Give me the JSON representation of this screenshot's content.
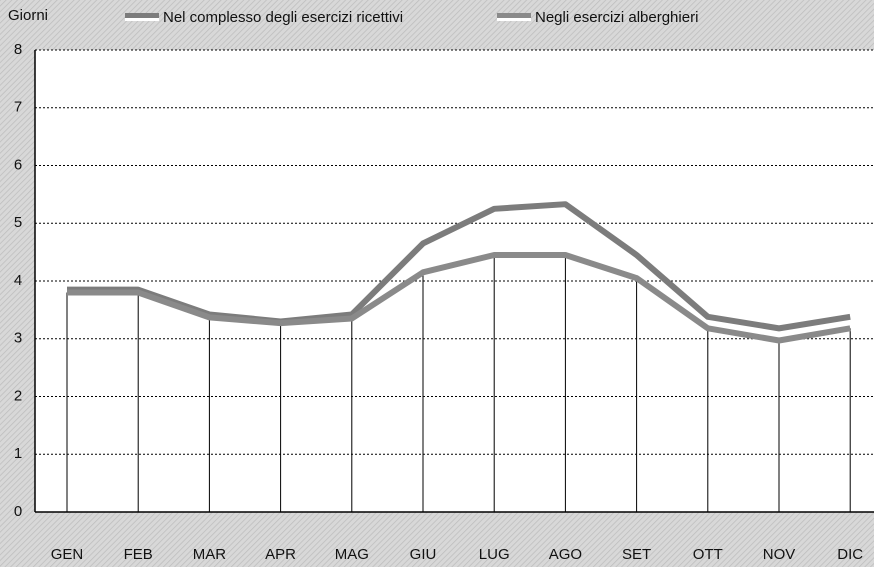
{
  "chart_data": {
    "type": "line",
    "ylabel": "Giorni",
    "categories": [
      "GEN",
      "FEB",
      "MAR",
      "APR",
      "MAG",
      "GIU",
      "LUG",
      "AGO",
      "SET",
      "OTT",
      "NOV",
      "DIC"
    ],
    "series": [
      {
        "name": "Nel complesso degli esercizi ricettivi",
        "color": "#7c7c7c",
        "values": [
          3.85,
          3.85,
          3.42,
          3.3,
          3.42,
          4.65,
          5.25,
          5.33,
          4.45,
          3.38,
          3.18,
          3.38
        ]
      },
      {
        "name": "Negli esercizi alberghieri",
        "color": "#8a8a8a",
        "values": [
          3.8,
          3.8,
          3.37,
          3.27,
          3.35,
          4.15,
          4.45,
          4.45,
          4.05,
          3.18,
          2.97,
          3.18
        ]
      }
    ],
    "ylim": [
      0,
      8
    ],
    "yticks": [
      0,
      1,
      2,
      3,
      4,
      5,
      6,
      7,
      8
    ],
    "grid": true
  }
}
